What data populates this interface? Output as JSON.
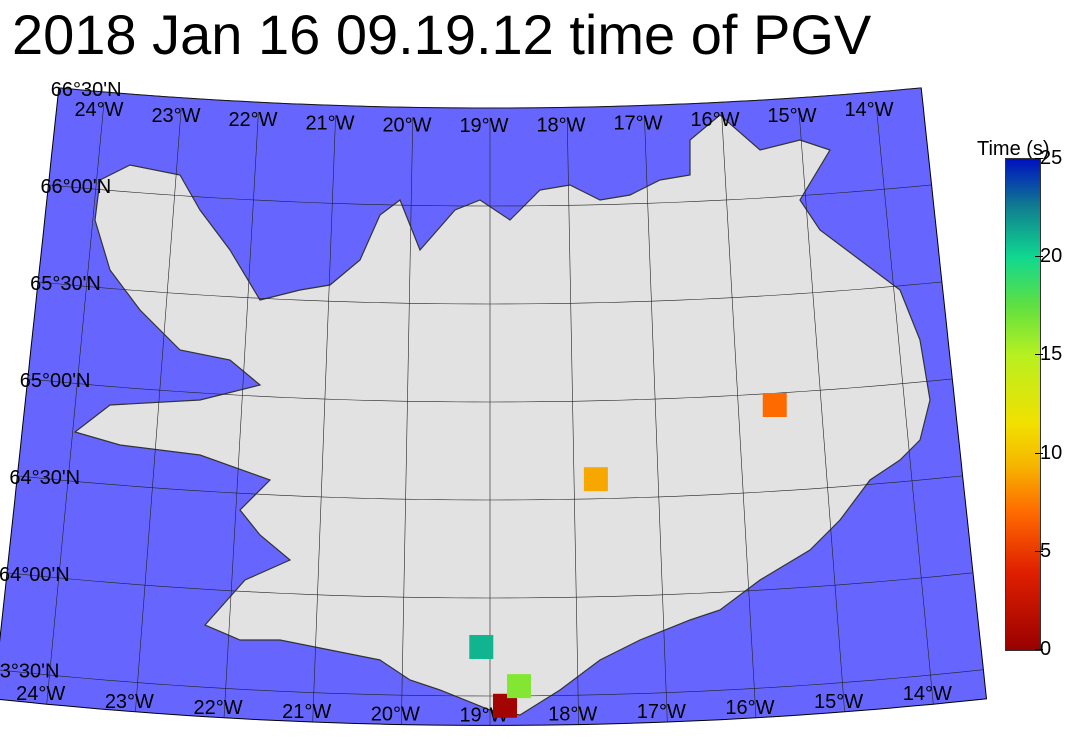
{
  "title": "2018 Jan 16 09.19.12 time of PGV",
  "colors": {
    "sea": "#6666ff",
    "land": "#e2e2e2",
    "coast": "#333333",
    "grid": "#222222"
  },
  "colorbar": {
    "title": "Time (s)",
    "range": [
      0,
      25
    ],
    "ticks": [
      "0",
      "5",
      "10",
      "15",
      "20",
      "25"
    ],
    "stops": [
      [
        0,
        "#9a0000"
      ],
      [
        4,
        "#e02000"
      ],
      [
        7,
        "#ff6a00"
      ],
      [
        9.5,
        "#f5b800"
      ],
      [
        11.5,
        "#f2e000"
      ],
      [
        15,
        "#b8f020"
      ],
      [
        17.5,
        "#60e040"
      ],
      [
        20,
        "#10d890"
      ],
      [
        22.5,
        "#108090"
      ],
      [
        25,
        "#0010c0"
      ]
    ]
  },
  "graticule": {
    "lat_labels": [
      "66°30'N",
      "66°00'N",
      "65°30'N",
      "65°00'N",
      "64°30'N",
      "64°00'N",
      "63°30'N"
    ],
    "lats": [
      66.5,
      66.0,
      65.5,
      65.0,
      64.5,
      64.0,
      63.5
    ],
    "lon_labels": [
      "24°W",
      "23°W",
      "22°W",
      "21°W",
      "20°W",
      "19°W",
      "18°W",
      "17°W",
      "16°W",
      "15°W",
      "14°W"
    ],
    "lons": [
      -24,
      -23,
      -22,
      -21,
      -20,
      -19,
      -18,
      -17,
      -16,
      -15,
      -14
    ],
    "extent": {
      "lon": [
        -24.6,
        -13.4
      ],
      "lat": [
        63.35,
        66.5
      ]
    }
  },
  "stations": [
    {
      "lon": -18.83,
      "lat": 63.45,
      "time": 0.5
    },
    {
      "lon": -18.67,
      "lat": 63.55,
      "time": 16.5
    },
    {
      "lon": -19.1,
      "lat": 63.75,
      "time": 21
    },
    {
      "lon": -17.74,
      "lat": 64.6,
      "time": 9
    },
    {
      "lon": -15.56,
      "lat": 64.94,
      "time": 7
    }
  ]
}
